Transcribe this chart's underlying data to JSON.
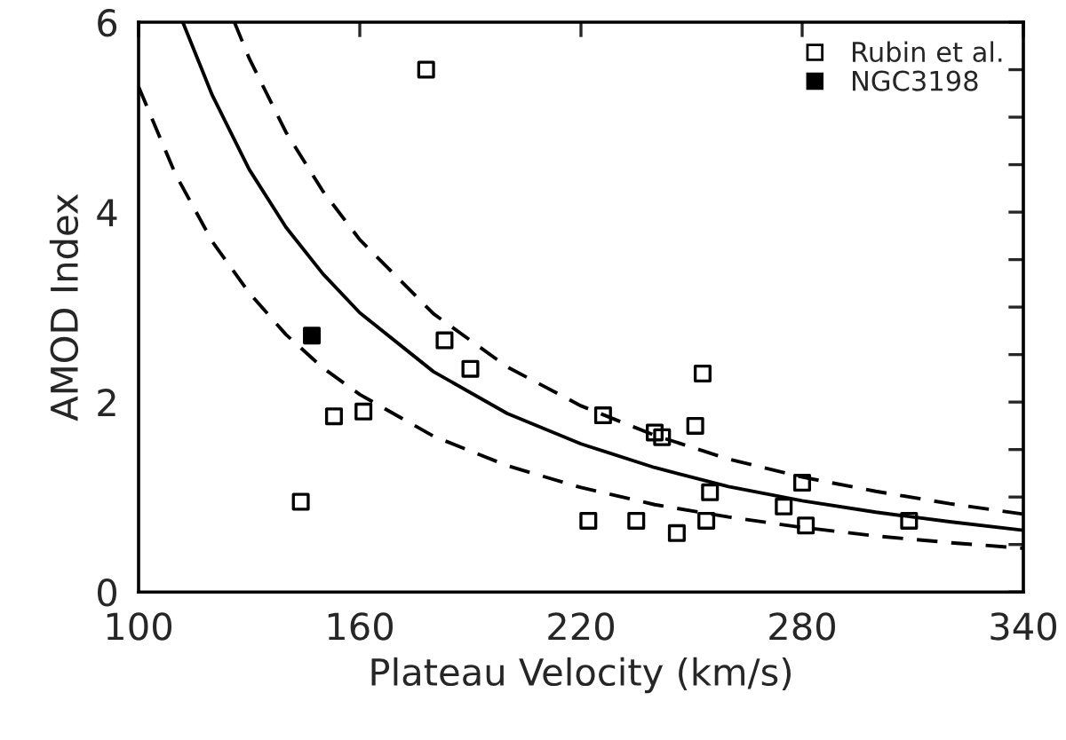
{
  "chart_data": {
    "type": "scatter",
    "xlabel": "Plateau Velocity (km/s)",
    "ylabel": "AMOD Index",
    "xlim": [
      100,
      340
    ],
    "ylim": [
      0,
      6
    ],
    "xticks": [
      100,
      160,
      220,
      280,
      340
    ],
    "yticks": [
      0,
      {
        "value": 0.5,
        "label": null
      },
      {
        "value": 1,
        "label": null
      },
      {
        "value": 1.5,
        "label": null
      },
      2,
      {
        "value": 2.5,
        "label": null
      },
      {
        "value": 3,
        "label": null
      },
      {
        "value": 3.5,
        "label": null
      },
      4,
      {
        "value": 4.5,
        "label": null
      },
      {
        "value": 5,
        "label": null
      },
      {
        "value": 5.5,
        "label": null
      },
      6
    ],
    "grid": false,
    "legend": "top right",
    "marker": "square",
    "series": [
      {
        "name": "Rubin et al.",
        "color": "#000000",
        "x": [
          144,
          153,
          161,
          178,
          183,
          190,
          222,
          226,
          235,
          240,
          242,
          246,
          251,
          253,
          254,
          255,
          275,
          280,
          281,
          309
        ],
        "values": [
          0.95,
          1.85,
          1.9,
          5.5,
          2.65,
          2.35,
          0.75,
          1.86,
          0.75,
          1.68,
          1.63,
          0.62,
          1.75,
          2.3,
          0.75,
          1.05,
          0.9,
          1.15,
          0.7,
          0.75
        ]
      },
      {
        "name": "NGC3198",
        "color": "#000000",
        "x": [
          147
        ],
        "values": [
          2.7
        ]
      },
      {
        "type": "line",
        "color": "#000000",
        "line_style": "solid",
        "marker": "none",
        "x": [
          112,
          120,
          130,
          140,
          150,
          160,
          180,
          200,
          220,
          240,
          260,
          280,
          300,
          320,
          340
        ],
        "values": [
          6.0,
          5.23,
          4.45,
          3.84,
          3.35,
          2.94,
          2.32,
          1.88,
          1.56,
          1.31,
          1.11,
          0.96,
          0.84,
          0.74,
          0.65
        ]
      },
      {
        "type": "line",
        "color": "#000000",
        "line_style": "dashed",
        "marker": "none",
        "x": [
          126,
          130,
          140,
          150,
          160,
          180,
          200,
          220,
          240,
          260,
          280,
          300,
          320,
          340
        ],
        "values": [
          6.0,
          5.62,
          4.84,
          4.22,
          3.71,
          2.93,
          2.37,
          1.96,
          1.65,
          1.4,
          1.21,
          1.06,
          0.93,
          0.82
        ]
      },
      {
        "type": "line",
        "color": "#000000",
        "line_style": "dashed",
        "marker": "none",
        "x": [
          100,
          110,
          120,
          130,
          140,
          150,
          160,
          180,
          200,
          220,
          240,
          260,
          280,
          300,
          320,
          340
        ],
        "values": [
          5.32,
          4.4,
          3.69,
          3.15,
          2.71,
          2.36,
          2.08,
          1.64,
          1.33,
          1.1,
          0.92,
          0.79,
          0.68,
          0.59,
          0.52,
          0.46
        ]
      }
    ]
  }
}
